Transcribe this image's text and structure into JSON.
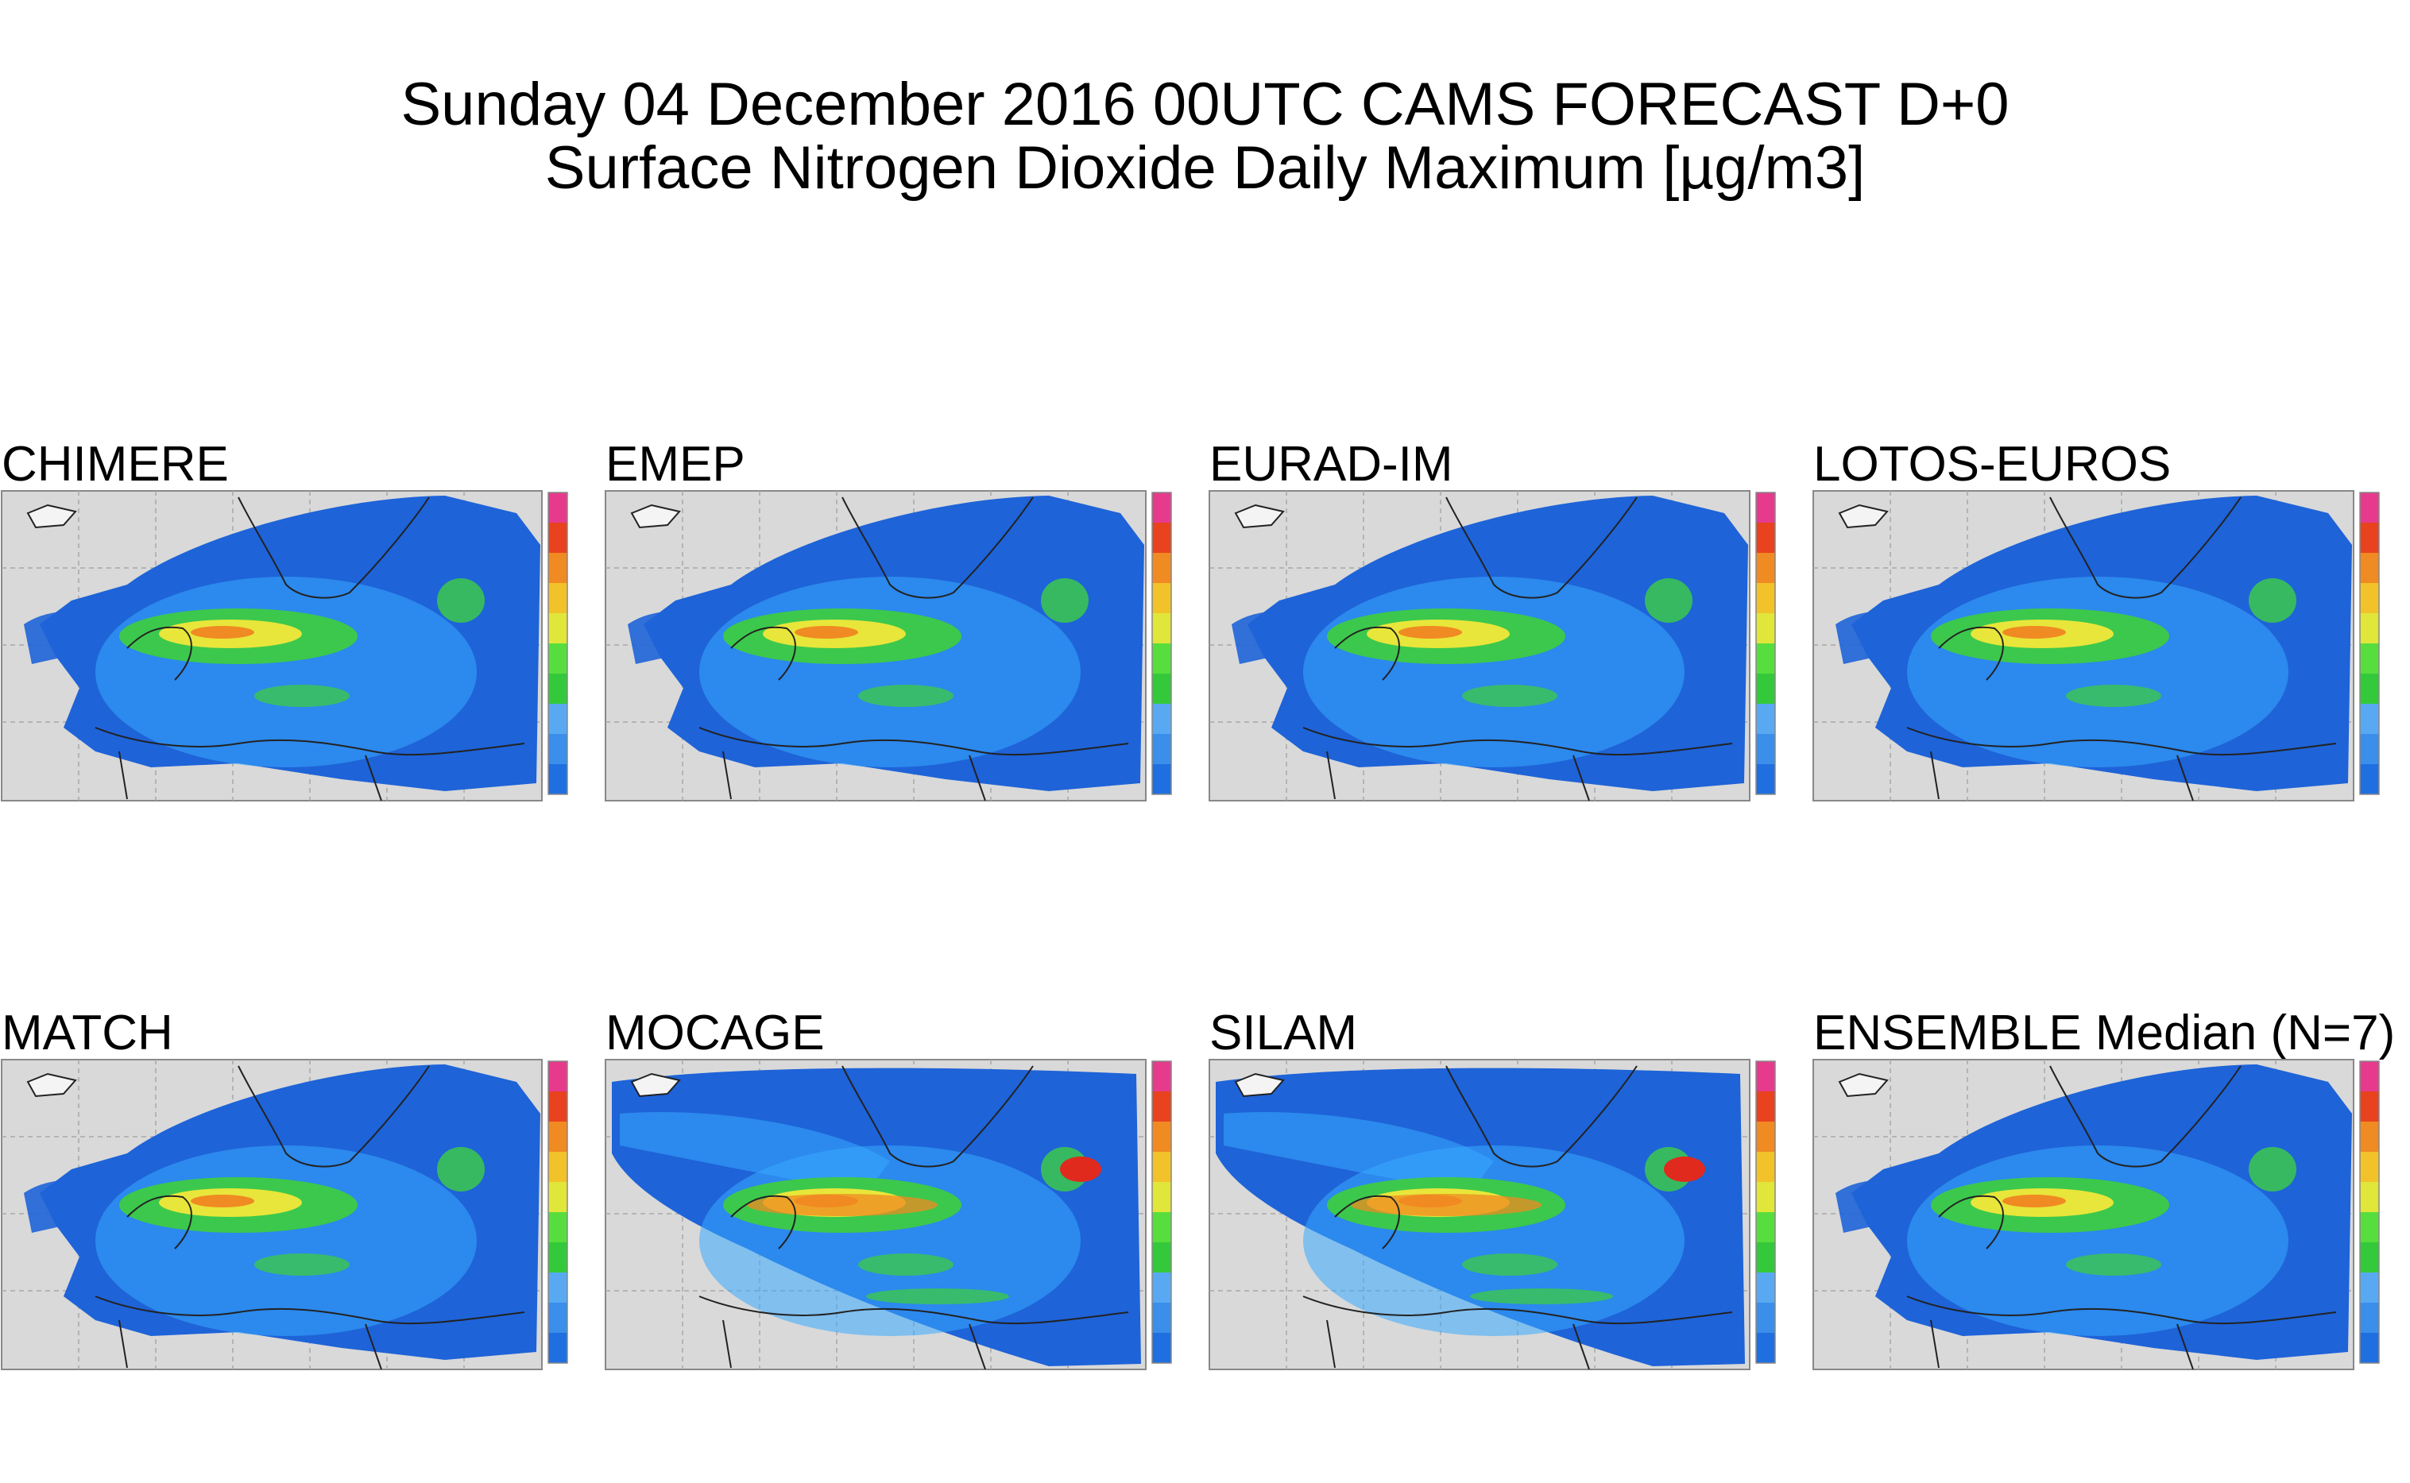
{
  "title": {
    "line1": "Sunday 04 December 2016 00UTC CAMS FORECAST D+0",
    "line2": "Surface Nitrogen Dioxide Daily Maximum [µg/m3]"
  },
  "colors": {
    "sea_background": "#d9d9d9",
    "grid": "#a8a8a8",
    "coastline": "#222222",
    "colorbar": [
      "#1f6fe0",
      "#3b8eea",
      "#59a9f2",
      "#34c93a",
      "#58dd3e",
      "#e1e63a",
      "#f2c22b",
      "#f08a22",
      "#e8431e",
      "#e63b8c"
    ],
    "concentration_low": "#1e63d8",
    "concentration_mid": "#39a9ff",
    "concentration_green": "#3cc84c",
    "concentration_yellow": "#e8e63a",
    "concentration_orange": "#f08a22",
    "concentration_red": "#e02a1e"
  },
  "panels": [
    {
      "label": "CHIMERE",
      "coverage": "regional",
      "intensity": 1
    },
    {
      "label": "EMEP",
      "coverage": "regional",
      "intensity": 1
    },
    {
      "label": "EURAD-IM",
      "coverage": "regional",
      "intensity": 1
    },
    {
      "label": "LOTOS-EUROS",
      "coverage": "regional",
      "intensity": 1
    },
    {
      "label": "MATCH",
      "coverage": "regional",
      "intensity": 1
    },
    {
      "label": "MOCAGE",
      "coverage": "full",
      "intensity": 2
    },
    {
      "label": "SILAM",
      "coverage": "full",
      "intensity": 2
    },
    {
      "label": "ENSEMBLE Median (N=7)",
      "coverage": "regional",
      "intensity": 1
    }
  ]
}
